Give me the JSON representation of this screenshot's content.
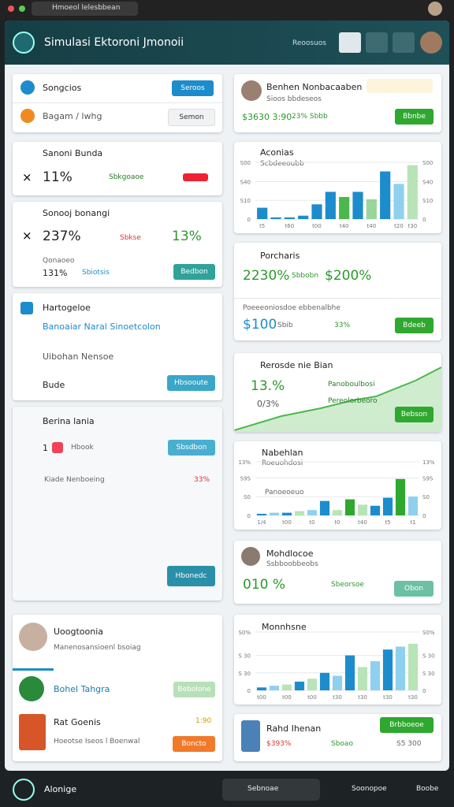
{
  "topbar": {
    "url": "Hmoeol lelesbbean"
  },
  "header": {
    "title": "Simulasi Ektoroni Jmonoii",
    "action": "Reoosuos"
  },
  "left": [
    {
      "row1": "Songcios",
      "button1": "Seroos",
      "row2": "Bagam / lwhg",
      "button2": "Semon"
    },
    {
      "title": "Sanoni Bunda",
      "value": "11%",
      "tag": "Sbkgoaoe"
    },
    {
      "title": "Sonooj bonangi",
      "value": "237%",
      "small": "Sbkse",
      "change": "13%",
      "label": "Qonaoeo",
      "value2": "131%",
      "tag": "Sbiotsis",
      "button": "Bedbon"
    },
    {
      "title": "Hartogeloe",
      "link": "Banoaiar Naral Sinoetcolon",
      "row2": "Uibohan Nensoe",
      "row3": "Bude",
      "button": "Hbsooute"
    },
    {
      "title": "Berina lania",
      "count": "1",
      "item": "Hbook",
      "button1": "Sbsdbon",
      "row2": "Kiade Nenboeing",
      "change": "33%",
      "button2": "Hbonedc"
    },
    {
      "title": "Uoogtoonia",
      "subtitle": "Manenosansioenl bsoiag",
      "row1": "Bohel Tahgra",
      "button1": "Bebolone",
      "row2": "Rat Goenis",
      "time": "1:90",
      "row2sub": "Hoeotse Iseos l Boenwal",
      "button2": "Boncto"
    }
  ],
  "right": [
    {
      "title": "Benhen Nonbacaaben",
      "subtitle": "Sioos bbdeseos",
      "value": "$3630 3:90",
      "change": "23% Sbbb",
      "button": "Bbnbe"
    },
    {
      "title": "Aconias",
      "subtitle": "Scbdeeoubb",
      "chart": {
        "type": "bar",
        "ylim": [
          0,
          100
        ],
        "yticks": [
          0,
          {
            "value": 33,
            "label": "S10"
          },
          {
            "value": 66,
            "label": "S40"
          },
          {
            "value": 100,
            "label": "S00"
          }
        ],
        "categories": [
          "t5",
          null,
          "t60",
          null,
          "t00",
          null,
          "t40",
          null,
          "t40",
          null,
          "t20",
          "t30"
        ],
        "values": [
          20,
          3,
          3,
          6,
          26,
          48,
          39,
          48,
          35,
          84,
          62,
          95
        ],
        "colors": [
          "#1c8ccc",
          "#1c8ccc",
          "#1c8ccc",
          "#1c8ccc",
          "#1c8ccc",
          "#1c8ccc",
          "#4cb84c",
          "#1c8ccc",
          "#9ad69a",
          "#1c8ccc",
          "#8fd0ee",
          "#b8e4b8"
        ]
      }
    },
    {
      "title": "Porcharis",
      "value": "2230%",
      "tag": "Sbbobn",
      "value2": "$200%",
      "subtitle": "Poeeeoniosdoe ebbenalbhe",
      "price": "$100",
      "small": "Sbib",
      "change": "33%",
      "button": "Bdeeb"
    },
    {
      "title": "Rerosde nie Bian",
      "value": "13.%",
      "value2": "0/3%",
      "item1": "Panoboulbosi",
      "item2": "Pereolorbeoro",
      "button": "Bebson"
    },
    {
      "title": "Nabehlan",
      "subtitle": "Roeuohdosi",
      "note": "Panoeoeuo",
      "chart": {
        "type": "bar",
        "ylim": [
          0,
          100
        ],
        "yticks": [
          0,
          {
            "value": 35,
            "label": "S0"
          },
          {
            "value": 70,
            "label": "S9S"
          },
          {
            "value": 100,
            "label": "13%"
          }
        ],
        "categories": [
          "1/4",
          null,
          "t00",
          null,
          "t0",
          null,
          "t0",
          null,
          "t40",
          null,
          "t5",
          null,
          "t1"
        ],
        "values": [
          3,
          5,
          5,
          8,
          10,
          27,
          10,
          30,
          20,
          18,
          33,
          68,
          35
        ],
        "colors": [
          "#1c8ccc",
          "#8fd0ee",
          "#1c8ccc",
          "#b8e4b8",
          "#8fd0ee",
          "#1c8ccc",
          "#b8e4b8",
          "#2fa82f",
          "#b8e4b8",
          "#1c8ccc",
          "#1c8ccc",
          "#2fa82f",
          "#8fd0ee"
        ]
      }
    },
    {
      "title": "Mohdlocoe",
      "subtitle": "Ssbboobbeobs",
      "value": "010 %",
      "tag": "Sbeorsoe",
      "button": "Obon"
    },
    {
      "title": "Monnhsne",
      "chart": {
        "type": "bar",
        "ylim": [
          0,
          100
        ],
        "yticks": [
          0,
          {
            "value": 30,
            "label": "S 30"
          },
          {
            "value": 60,
            "label": "S 30"
          },
          {
            "value": 100,
            "label": "S0%"
          }
        ],
        "categories": [
          "t00",
          null,
          "t00",
          null,
          "t00",
          null,
          "t30",
          null,
          "t30",
          null,
          "t30",
          null,
          "t30"
        ],
        "values": [
          5,
          8,
          10,
          15,
          20,
          30,
          25,
          60,
          40,
          50,
          70,
          75,
          80
        ],
        "colors": [
          "#1c8ccc",
          "#8fd0ee",
          "#b8e4b8",
          "#1c8ccc",
          "#b8e4b8",
          "#1c8ccc",
          "#8fd0ee",
          "#1c8ccc",
          "#b8e4b8",
          "#8fd0ee",
          "#1c8ccc",
          "#8fd0ee",
          "#b8e4b8"
        ]
      }
    },
    {
      "title": "Rahd Ihenan",
      "button": "Brbboeoe",
      "value": "$393%",
      "tag": "Sboao",
      "price": "S5 300"
    }
  ],
  "bottom": {
    "left": "Alonige",
    "tab1": "Sebnoae",
    "tab2": "Soonopoe",
    "tab3": "Boobe"
  }
}
